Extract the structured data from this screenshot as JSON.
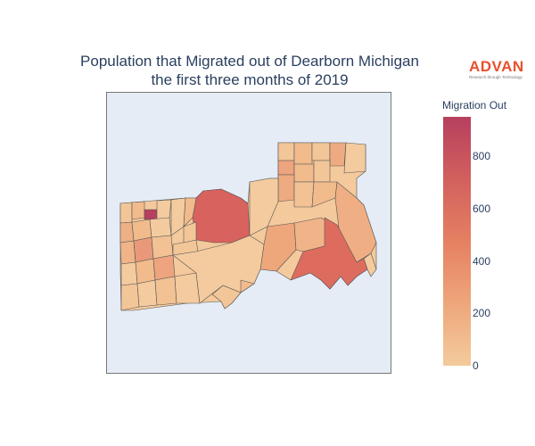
{
  "title": {
    "line1": "Population that Migrated out of Dearborn Michigan",
    "line2": "the first three months of 2019"
  },
  "logo": {
    "word": "ADVAN",
    "tagline": "Research through Technology",
    "color": "#e8512d"
  },
  "colorbar": {
    "title": "Migration Out",
    "min": 0,
    "max": 950,
    "ticks": [
      {
        "label": "0",
        "value": 0
      },
      {
        "label": "200",
        "value": 200
      },
      {
        "label": "400",
        "value": 400
      },
      {
        "label": "600",
        "value": 600
      },
      {
        "label": "800",
        "value": 800
      }
    ],
    "colors": [
      "#f3cb9c",
      "#eea67b",
      "#e58062",
      "#d2605d",
      "#b6405f"
    ]
  },
  "map": {
    "type": "choropleth",
    "background": "#e5ecf6",
    "region_border": "#555555",
    "regions": [
      {
        "name": "central-north-large",
        "value": 680
      },
      {
        "name": "southeast-large",
        "value": 610
      },
      {
        "name": "east-strip",
        "value": 300
      },
      {
        "name": "center-east-1",
        "value": 250
      },
      {
        "name": "center-east-2",
        "value": 280
      },
      {
        "name": "west-small-dark",
        "value": 950
      },
      {
        "name": "northeast-block",
        "value": 300
      },
      {
        "name": "south-block",
        "value": 330
      }
    ]
  }
}
